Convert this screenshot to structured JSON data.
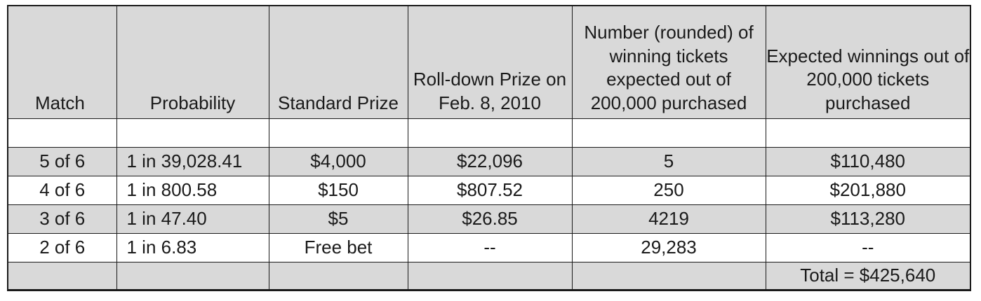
{
  "headers": {
    "match": "Match",
    "probability": "Probability",
    "standard_prize": "Standard Prize",
    "rolldown_prize": "Roll-down Prize on Feb. 8, 2010",
    "num_winning": "Number (rounded) of winning tickets expected out of 200,000 purchased",
    "expected_winnings": "Expected winnings out of 200,000 tickets purchased"
  },
  "rows": [
    {
      "match": "5 of 6",
      "probability": "1 in 39,028.41",
      "standard": "$4,000",
      "rolldown": "$22,096",
      "number": "5",
      "expected": "$110,480"
    },
    {
      "match": "4 of 6",
      "probability": "1 in 800.58",
      "standard": "$150",
      "rolldown": "$807.52",
      "number": "250",
      "expected": "$201,880"
    },
    {
      "match": "3 of 6",
      "probability": "1 in 47.40",
      "standard": "$5",
      "rolldown": "$26.85",
      "number": "4219",
      "expected": "$113,280"
    },
    {
      "match": "2 of 6",
      "probability": "1 in 6.83",
      "standard": "Free bet",
      "rolldown": "--",
      "number": "29,283",
      "expected": "--"
    }
  ],
  "total": "Total = $425,640"
}
